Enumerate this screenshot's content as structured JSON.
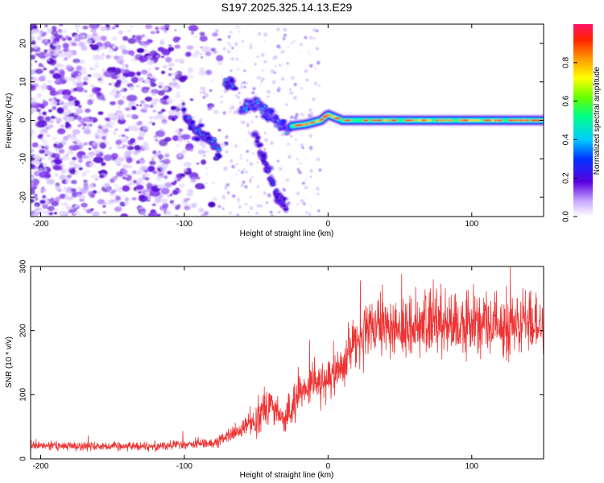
{
  "title": "S197.2025.325.14.13.E29",
  "chart_data": [
    {
      "type": "heatmap",
      "name": "spectrogram",
      "xlabel": "Height of straight line (km)",
      "ylabel": "Frequency (Hz)",
      "xlim": [
        -207,
        150
      ],
      "ylim": [
        -25,
        25
      ],
      "xticks": [
        -200,
        -100,
        0,
        100
      ],
      "yticks": [
        -20,
        -10,
        0,
        10,
        20
      ],
      "colorbar": {
        "label": "Normalized spectral amplitude",
        "range": [
          0,
          1
        ],
        "ticks": [
          "0.0",
          "0.2",
          "0.4",
          "0.6",
          "0.8"
        ],
        "tick_values": [
          0.0,
          0.2,
          0.4,
          0.6,
          0.8
        ]
      },
      "features": [
        {
          "name": "noise field",
          "x_range": [
            -207,
            -75
          ],
          "freq_range": [
            -25,
            25
          ],
          "amplitude": 0.12
        },
        {
          "name": "descending branch",
          "x": [
            -100,
            -90,
            -80,
            -75
          ],
          "freq": [
            1,
            -3,
            -6,
            -9
          ],
          "amplitude": 0.3
        },
        {
          "name": "hook",
          "x": [
            -70,
            -66
          ],
          "freq": [
            10,
            9
          ],
          "amplitude": 0.3
        },
        {
          "name": "converging branch",
          "x": [
            -60,
            -50,
            -45,
            -40,
            -35,
            -30,
            -25
          ],
          "freq": [
            3,
            4,
            3,
            1,
            0,
            -2,
            -2
          ],
          "amplitude": 0.35
        },
        {
          "name": "lower branch",
          "x": [
            -50,
            -45,
            -40,
            -35,
            -30
          ],
          "freq": [
            -4,
            -10,
            -15,
            -20,
            -22
          ],
          "amplitude": 0.2
        },
        {
          "name": "carrier line",
          "x": [
            -25,
            -15,
            -5,
            0,
            10,
            50,
            100,
            150
          ],
          "freq": [
            -1.5,
            -1,
            0,
            1.5,
            0,
            0,
            0,
            0
          ],
          "amplitude": 0.85
        }
      ]
    },
    {
      "type": "line",
      "name": "snr",
      "xlabel": "Height of straight line (km)",
      "ylabel": "SNR (10 * v/v)",
      "xlim": [
        -207,
        150
      ],
      "ylim": [
        0,
        300
      ],
      "xticks": [
        -200,
        -100,
        0,
        100
      ],
      "yticks": [
        0,
        100,
        200,
        300
      ],
      "color": "#ee3333",
      "series": [
        {
          "name": "SNR",
          "x": [
            -207,
            -180,
            -150,
            -120,
            -100,
            -80,
            -70,
            -60,
            -50,
            -45,
            -40,
            -35,
            -30,
            -25,
            -20,
            -15,
            -10,
            -5,
            0,
            5,
            10,
            15,
            20,
            25,
            30,
            40,
            50,
            60,
            70,
            80,
            90,
            100,
            110,
            120,
            130,
            140,
            150
          ],
          "y": [
            20,
            20,
            20,
            20,
            22,
            25,
            35,
            45,
            65,
            80,
            85,
            70,
            60,
            80,
            100,
            110,
            125,
            115,
            120,
            130,
            150,
            170,
            185,
            195,
            200,
            205,
            205,
            205,
            210,
            215,
            205,
            210,
            210,
            205,
            210,
            210,
            205
          ]
        }
      ]
    }
  ]
}
